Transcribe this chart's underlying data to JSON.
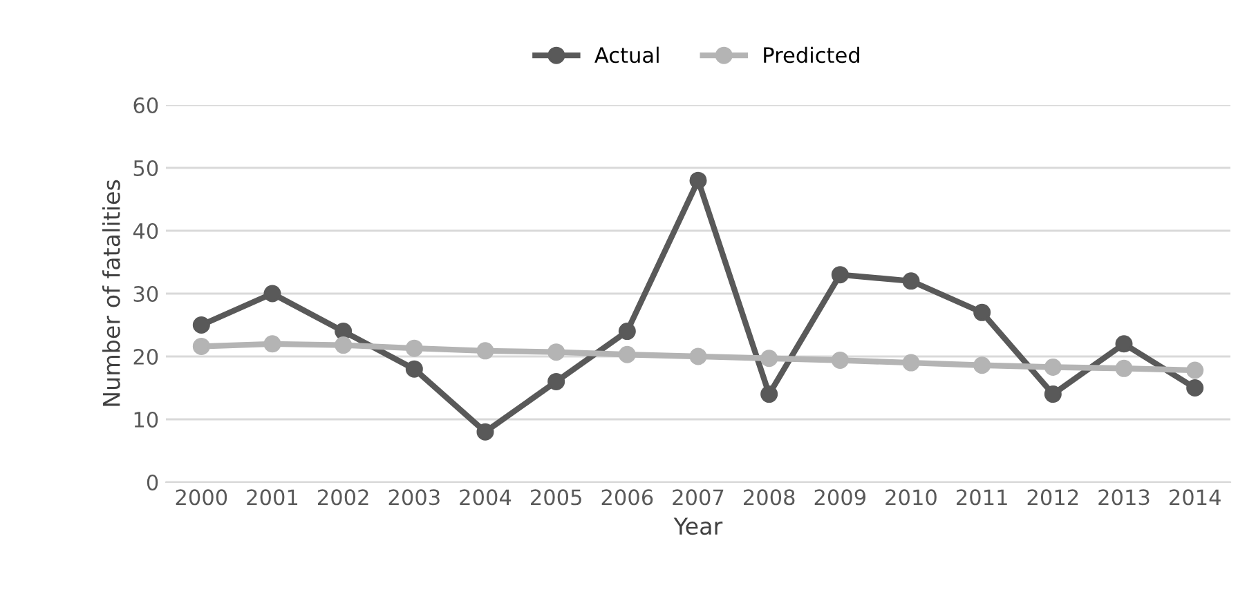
{
  "chart_data": {
    "type": "line",
    "xlabel": "Year",
    "ylabel": "Number of fatalities",
    "categories": [
      "2000",
      "2001",
      "2002",
      "2003",
      "2004",
      "2005",
      "2006",
      "2007",
      "2008",
      "2009",
      "2010",
      "2011",
      "2012",
      "2013",
      "2014"
    ],
    "series": [
      {
        "name": "Actual",
        "color": "#595959",
        "values": [
          25,
          30,
          24,
          18,
          8,
          16,
          24,
          48,
          14,
          33,
          32,
          27,
          14,
          22,
          15
        ]
      },
      {
        "name": "Predicted",
        "color": "#b4b4b4",
        "values": [
          21.6,
          22,
          21.8,
          21.3,
          20.9,
          20.7,
          20.3,
          20.0,
          19.7,
          19.4,
          19.0,
          18.6,
          18.3,
          18.1,
          17.8
        ]
      }
    ],
    "ylim": [
      0,
      60
    ],
    "yticks": [
      0,
      10,
      20,
      30,
      40,
      50,
      60
    ],
    "grid": "y",
    "legend": "top",
    "marker": "circle",
    "line_style": "solid"
  }
}
